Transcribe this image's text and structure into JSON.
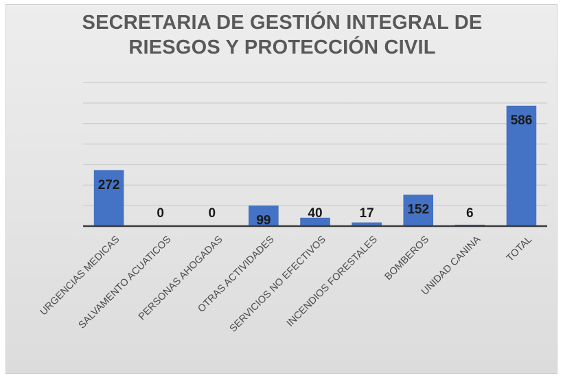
{
  "chart_data": {
    "type": "bar",
    "title_lines": [
      "SECRETARIA DE GESTIÓN INTEGRAL DE",
      "RIESGOS Y PROTECCIÓN CIVIL"
    ],
    "categories": [
      "URGENCIAS MEDICAS",
      "SALVAMENTO ACUATICOS",
      "PERSONAS AHOGADAS",
      "OTRAS ACTIVIDADES",
      "SERVICIOS NO EFECTIVOS",
      "INCENDIOS FORESTALES",
      "BOMBEROS",
      "UNIDAD CANINA",
      "TOTAL"
    ],
    "values": [
      272,
      0,
      0,
      99,
      40,
      17,
      152,
      6,
      586
    ],
    "ylim": [
      0,
      700
    ],
    "grid": true,
    "legend": "none",
    "bar_color": "#4472c4"
  }
}
